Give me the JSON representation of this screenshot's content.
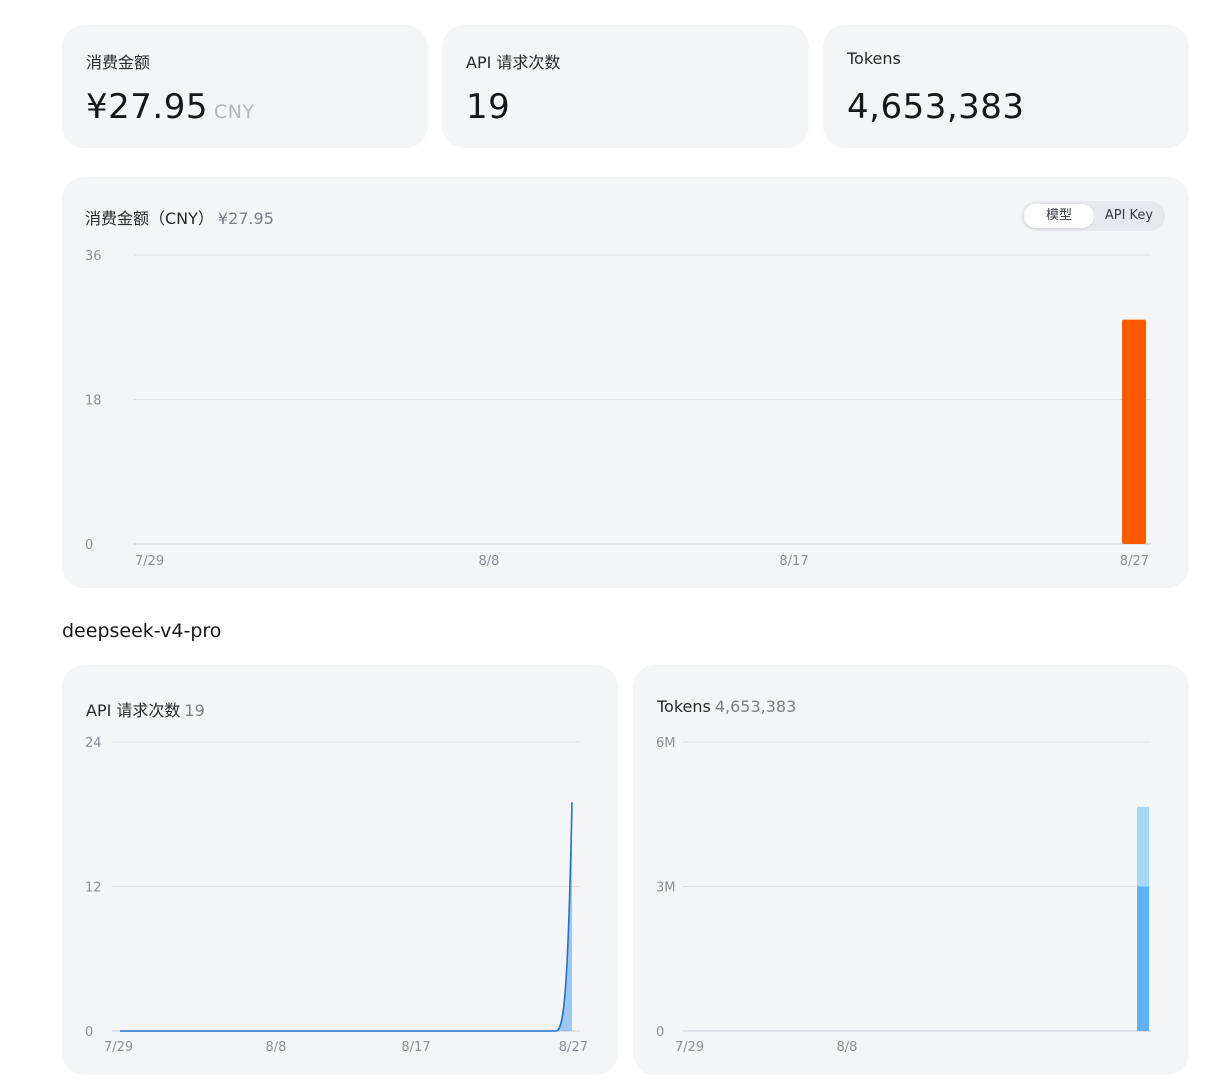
{
  "stats": {
    "cost": {
      "label": "消费金额",
      "value": "¥27.95",
      "unit": "CNY"
    },
    "requests": {
      "label": "API 请求次数",
      "value": "19"
    },
    "tokens": {
      "label": "Tokens",
      "value": "4,653,383"
    }
  },
  "cost_chart": {
    "title": "消费金额（CNY）",
    "total": "¥27.95",
    "toggle": {
      "options": [
        "模型",
        "API Key"
      ],
      "selected": "模型"
    }
  },
  "model_section": {
    "title": "deepseek-v4-pro"
  },
  "requests_chart": {
    "title": "API 请求次数",
    "total": "19"
  },
  "tokens_chart": {
    "title": "Tokens",
    "total": "4,653,383"
  },
  "colors": {
    "accent_orange": "#ff5a00",
    "line_blue": "#1c74d0",
    "bar_blue_dark": "#60b0f4",
    "bar_blue_light": "#a3d7fb",
    "card_bg": "#f4f5f7"
  },
  "chart_data": [
    {
      "type": "bar",
      "title": "消费金额（CNY）",
      "x_labels": [
        "7/29",
        "8/8",
        "8/17",
        "8/27"
      ],
      "ylim": [
        0,
        36
      ],
      "yticks": [
        "0",
        "18",
        "36"
      ],
      "grid": true,
      "series": [
        {
          "values": [
            {
              "x": "8/27",
              "y": 27.95
            }
          ]
        }
      ]
    },
    {
      "type": "area",
      "title": "API 请求次数",
      "x_labels": [
        "7/29",
        "8/8",
        "8/17",
        "8/27"
      ],
      "ylim": [
        0,
        24
      ],
      "yticks": [
        "0",
        "12",
        "24"
      ],
      "grid": true,
      "series": [
        {
          "values": [
            {
              "x": "7/29",
              "y": 0
            },
            {
              "x": "8/26",
              "y": 0
            },
            {
              "x": "8/27",
              "y": 19
            }
          ]
        }
      ]
    },
    {
      "type": "bar",
      "title": "Tokens",
      "x_labels": [
        "7/29",
        "8/8"
      ],
      "ylim": [
        0,
        6000000
      ],
      "yticks": [
        "0",
        "3M",
        "6M"
      ],
      "grid": true,
      "series": [
        {
          "values": [
            {
              "x": "8/27",
              "segments": [
                3000000,
                1653383
              ]
            }
          ]
        }
      ]
    }
  ]
}
